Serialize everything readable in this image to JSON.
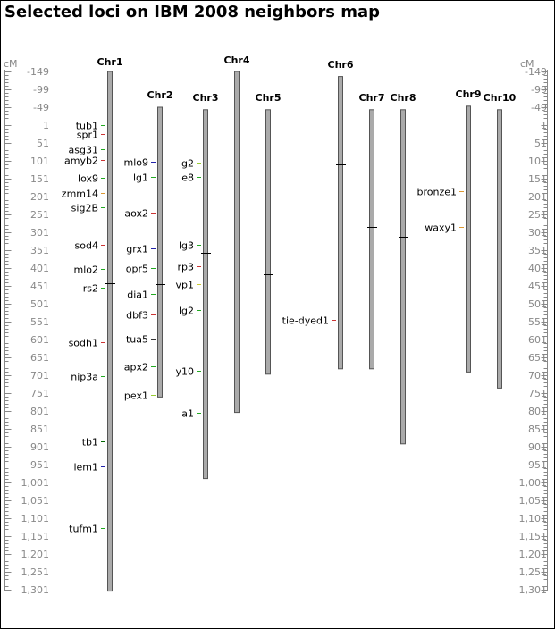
{
  "title": "Selected loci on IBM 2008 neighbors map",
  "axis": {
    "unit_label": "cM",
    "ticks": [
      "-149",
      "-99",
      "-49",
      "1",
      "51",
      "101",
      "151",
      "201",
      "251",
      "301",
      "351",
      "401",
      "451",
      "501",
      "551",
      "601",
      "651",
      "701",
      "751",
      "801",
      "851",
      "901",
      "951",
      "1,001",
      "1,051",
      "1,101",
      "1,151",
      "1,201",
      "1,251",
      "1,301"
    ],
    "tick_values": [
      -149,
      -99,
      -49,
      1,
      51,
      101,
      151,
      201,
      251,
      301,
      351,
      401,
      451,
      501,
      551,
      601,
      651,
      701,
      751,
      801,
      851,
      901,
      951,
      1001,
      1051,
      1101,
      1151,
      1201,
      1251,
      1301
    ]
  },
  "chromosomes": [
    {
      "name": "Chr1",
      "start_cM": -149,
      "end_cM": 1305,
      "centromere_cM": 444,
      "loci": [
        {
          "name": "tub1",
          "cM": 1,
          "side": "left",
          "color": "#22aa22"
        },
        {
          "name": "spr1",
          "cM": 25,
          "side": "left",
          "color": "#cc3333"
        },
        {
          "name": "asg31",
          "cM": 68,
          "side": "left",
          "color": "#22aa22"
        },
        {
          "name": "amyb2",
          "cM": 98,
          "side": "left",
          "color": "#cc3333"
        },
        {
          "name": "lox9",
          "cM": 149,
          "side": "left",
          "color": "#22aa22"
        },
        {
          "name": "zmm14",
          "cM": 190,
          "side": "left",
          "color": "#dd9933"
        },
        {
          "name": "sig2B",
          "cM": 231,
          "side": "left",
          "color": "#22aa22"
        },
        {
          "name": "sod4",
          "cM": 337,
          "side": "left",
          "color": "#cc3333"
        },
        {
          "name": "mlo2",
          "cM": 403,
          "side": "left",
          "color": "#22aa22"
        },
        {
          "name": "rs2",
          "cM": 457,
          "side": "left",
          "color": "#22aa22"
        },
        {
          "name": "sodh1",
          "cM": 609,
          "side": "left",
          "color": "#cc3333"
        },
        {
          "name": "nip3a",
          "cM": 703,
          "side": "left",
          "color": "#22aa22"
        },
        {
          "name": "tb1",
          "cM": 886,
          "side": "left",
          "color": "#006600"
        },
        {
          "name": "lem1",
          "cM": 956,
          "side": "left",
          "color": "#2222aa"
        },
        {
          "name": "tufm1",
          "cM": 1129,
          "side": "left",
          "color": "#22aa22"
        }
      ]
    },
    {
      "name": "Chr2",
      "start_cM": -49,
      "end_cM": 762,
      "centromere_cM": 447,
      "loci": [
        {
          "name": "mlo9",
          "cM": 103,
          "side": "left",
          "color": "#2222aa"
        },
        {
          "name": "lg1",
          "cM": 146,
          "side": "left",
          "color": "#22aa22"
        },
        {
          "name": "aox2",
          "cM": 245,
          "side": "left",
          "color": "#cc3333"
        },
        {
          "name": "grx1",
          "cM": 347,
          "side": "left",
          "color": "#2222aa"
        },
        {
          "name": "opr5",
          "cM": 402,
          "side": "left",
          "color": "#22aa22"
        },
        {
          "name": "dia1",
          "cM": 473,
          "side": "left",
          "color": "#22aa22"
        },
        {
          "name": "dbf3",
          "cM": 531,
          "side": "left",
          "color": "#cc3333"
        },
        {
          "name": "tua5",
          "cM": 598,
          "side": "left",
          "color": "#333333"
        },
        {
          "name": "apx2",
          "cM": 676,
          "side": "left",
          "color": "#22aa22"
        },
        {
          "name": "pex1",
          "cM": 755,
          "side": "left",
          "color": "#99cc33"
        }
      ]
    },
    {
      "name": "Chr3",
      "start_cM": -42,
      "end_cM": 990,
      "centromere_cM": 359,
      "loci": [
        {
          "name": "g2",
          "cM": 106,
          "side": "left",
          "color": "#99cc33"
        },
        {
          "name": "e8",
          "cM": 146,
          "side": "left",
          "color": "#22aa22"
        },
        {
          "name": "lg3",
          "cM": 337,
          "side": "left",
          "color": "#22aa22"
        },
        {
          "name": "rp3",
          "cM": 397,
          "side": "left",
          "color": "#cc3333"
        },
        {
          "name": "vp1",
          "cM": 447,
          "side": "left",
          "color": "#cccc33"
        },
        {
          "name": "lg2",
          "cM": 519,
          "side": "left",
          "color": "#22aa22"
        },
        {
          "name": "y10",
          "cM": 688,
          "side": "left",
          "color": "#22aa22"
        },
        {
          "name": "a1",
          "cM": 805,
          "side": "left",
          "color": "#22aa22"
        }
      ]
    },
    {
      "name": "Chr4",
      "start_cM": -149,
      "end_cM": 805,
      "centromere_cM": 297,
      "loci": []
    },
    {
      "name": "Chr5",
      "start_cM": -42,
      "end_cM": 698,
      "centromere_cM": 418,
      "loci": []
    },
    {
      "name": "Chr6",
      "start_cM": -135,
      "end_cM": 683,
      "centromere_cM": 112,
      "loci": [
        {
          "name": "tie-dyed1",
          "cM": 545,
          "side": "left",
          "color": "#cc3333"
        }
      ]
    },
    {
      "name": "Chr7",
      "start_cM": -42,
      "end_cM": 683,
      "centromere_cM": 287,
      "loci": []
    },
    {
      "name": "Chr8",
      "start_cM": -42,
      "end_cM": 893,
      "centromere_cM": 313,
      "loci": []
    },
    {
      "name": "Chr9",
      "start_cM": -52,
      "end_cM": 692,
      "centromere_cM": 318,
      "loci": [
        {
          "name": "bronze1",
          "cM": 185,
          "side": "left",
          "color": "#dd9933"
        },
        {
          "name": "waxy1",
          "cM": 287,
          "side": "left",
          "color": "#dd9933"
        }
      ]
    },
    {
      "name": "Chr10",
      "start_cM": -42,
      "end_cM": 737,
      "centromere_cM": 297,
      "loci": []
    }
  ]
}
